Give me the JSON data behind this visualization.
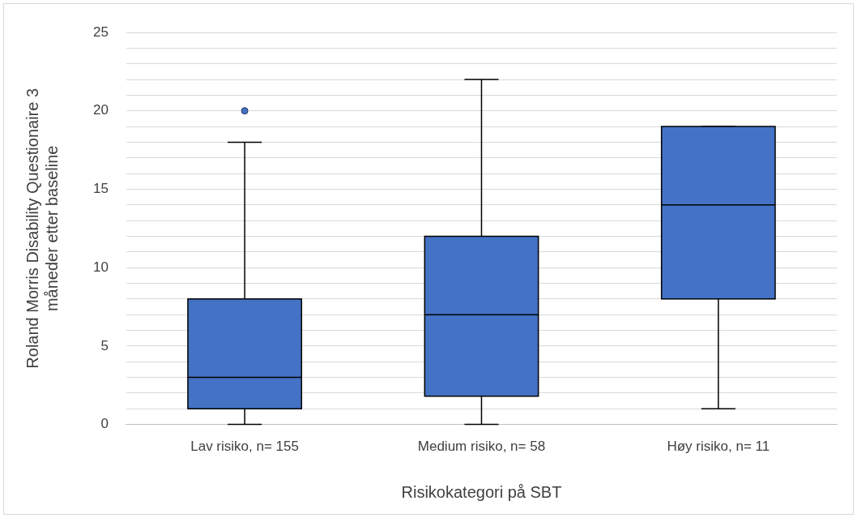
{
  "chart_data": {
    "type": "box",
    "categories": [
      "Lav risiko, n= 155",
      "Medium risiko, n= 58",
      "Høy risiko, n= 11"
    ],
    "color": "#4472c4",
    "boxes": [
      {
        "low": 0,
        "q1": 1,
        "median": 3,
        "q3": 8,
        "high": 18,
        "outliers": [
          20
        ]
      },
      {
        "low": 0,
        "q1": 1.8,
        "median": 7,
        "q3": 12,
        "high": 22
      },
      {
        "low": 1,
        "q1": 8,
        "median": 14,
        "q3": 19,
        "high": 19
      }
    ],
    "xlabel": "Risikokategori på SBT",
    "ylabel": "Roland Morris Disability Questionaire 3\nmåneder etter baseline",
    "ylim": [
      0,
      25
    ],
    "yticks": [
      0,
      {
        "value": 1,
        "label": null
      },
      {
        "value": 2,
        "label": null
      },
      {
        "value": 3,
        "label": null
      },
      {
        "value": 4,
        "label": null
      },
      5,
      {
        "value": 6,
        "label": null
      },
      {
        "value": 7,
        "label": null
      },
      {
        "value": 8,
        "label": null
      },
      {
        "value": 9,
        "label": null
      },
      10,
      {
        "value": 11,
        "label": null
      },
      {
        "value": 12,
        "label": null
      },
      {
        "value": 13,
        "label": null
      },
      {
        "value": 14,
        "label": null
      },
      15,
      {
        "value": 16,
        "label": null
      },
      {
        "value": 17,
        "label": null
      },
      {
        "value": 18,
        "label": null
      },
      {
        "value": 19,
        "label": null
      },
      20,
      {
        "value": 21,
        "label": null
      },
      {
        "value": 22,
        "label": null
      },
      {
        "value": 23,
        "label": null
      },
      {
        "value": 24,
        "label": null
      },
      25
    ],
    "grid": "y",
    "legend": false
  }
}
